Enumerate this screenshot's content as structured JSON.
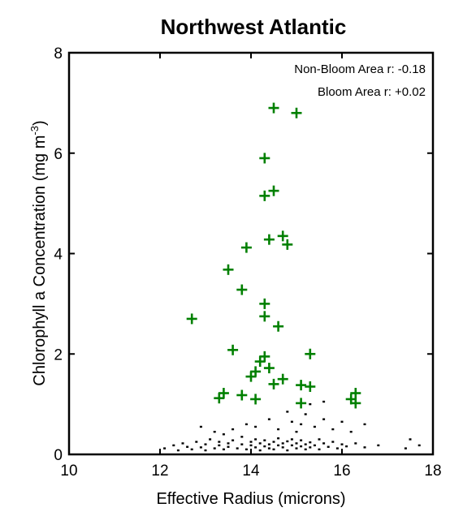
{
  "chart_data": {
    "type": "scatter",
    "title": "Northwest Atlantic",
    "xlabel": "Effective Radius (microns)",
    "ylabel": "Chlorophyll a Concentration (mg m",
    "ylabel_superscript": "-3",
    "ylabel_close": ")",
    "xlim": [
      10,
      18
    ],
    "ylim": [
      0,
      8
    ],
    "xticks": [
      10,
      12,
      14,
      16,
      18
    ],
    "yticks": [
      0,
      2,
      4,
      6,
      8
    ],
    "grid": false,
    "annotations": [
      "Non-Bloom Area r: -0.18",
      "Bloom Area r: +0.02"
    ],
    "series": [
      {
        "marker": "dot",
        "color": "#000000",
        "points": [
          [
            12.1,
            0.12
          ],
          [
            12.3,
            0.18
          ],
          [
            12.4,
            0.08
          ],
          [
            12.5,
            0.22
          ],
          [
            12.6,
            0.15
          ],
          [
            12.7,
            0.1
          ],
          [
            12.8,
            0.25
          ],
          [
            12.9,
            0.14
          ],
          [
            13.0,
            0.2
          ],
          [
            13.0,
            0.08
          ],
          [
            13.1,
            0.3
          ],
          [
            13.2,
            0.12
          ],
          [
            13.3,
            0.18
          ],
          [
            13.3,
            0.25
          ],
          [
            13.4,
            0.1
          ],
          [
            13.5,
            0.22
          ],
          [
            13.5,
            0.15
          ],
          [
            13.6,
            0.28
          ],
          [
            13.7,
            0.12
          ],
          [
            13.8,
            0.2
          ],
          [
            13.8,
            0.35
          ],
          [
            13.9,
            0.1
          ],
          [
            14.0,
            0.18
          ],
          [
            14.0,
            0.25
          ],
          [
            14.1,
            0.14
          ],
          [
            14.1,
            0.3
          ],
          [
            14.2,
            0.22
          ],
          [
            14.2,
            0.08
          ],
          [
            14.3,
            0.16
          ],
          [
            14.3,
            0.28
          ],
          [
            14.4,
            0.12
          ],
          [
            14.4,
            0.2
          ],
          [
            14.5,
            0.25
          ],
          [
            14.5,
            0.1
          ],
          [
            14.6,
            0.18
          ],
          [
            14.6,
            0.32
          ],
          [
            14.7,
            0.14
          ],
          [
            14.7,
            0.22
          ],
          [
            14.8,
            0.08
          ],
          [
            14.8,
            0.26
          ],
          [
            14.9,
            0.18
          ],
          [
            14.9,
            0.3
          ],
          [
            15.0,
            0.12
          ],
          [
            15.0,
            0.22
          ],
          [
            15.1,
            0.16
          ],
          [
            15.1,
            0.28
          ],
          [
            15.2,
            0.1
          ],
          [
            15.2,
            0.2
          ],
          [
            15.3,
            0.24
          ],
          [
            15.3,
            0.14
          ],
          [
            15.4,
            0.18
          ],
          [
            15.5,
            0.3
          ],
          [
            15.5,
            0.1
          ],
          [
            15.6,
            0.22
          ],
          [
            15.7,
            0.15
          ],
          [
            15.8,
            0.25
          ],
          [
            15.9,
            0.12
          ],
          [
            16.0,
            0.2
          ],
          [
            16.1,
            0.16
          ],
          [
            16.3,
            0.22
          ],
          [
            16.5,
            0.14
          ],
          [
            16.8,
            0.18
          ],
          [
            13.2,
            0.45
          ],
          [
            13.6,
            0.5
          ],
          [
            13.9,
            0.6
          ],
          [
            14.1,
            0.55
          ],
          [
            14.4,
            0.7
          ],
          [
            14.6,
            0.5
          ],
          [
            14.9,
            0.65
          ],
          [
            15.1,
            0.6
          ],
          [
            15.2,
            0.8
          ],
          [
            15.4,
            0.55
          ],
          [
            15.6,
            0.7
          ],
          [
            15.8,
            0.5
          ],
          [
            16.0,
            0.65
          ],
          [
            16.2,
            0.45
          ],
          [
            15.3,
            1.0
          ],
          [
            15.6,
            1.05
          ],
          [
            14.8,
            0.85
          ],
          [
            15.0,
            0.45
          ],
          [
            16.5,
            0.6
          ],
          [
            17.5,
            0.3
          ],
          [
            17.7,
            0.18
          ],
          [
            17.4,
            0.12
          ],
          [
            12.9,
            0.55
          ],
          [
            13.4,
            0.4
          ]
        ]
      },
      {
        "marker": "plus",
        "color": "#008000",
        "points": [
          [
            14.5,
            6.9
          ],
          [
            15.0,
            6.8
          ],
          [
            14.3,
            5.9
          ],
          [
            14.5,
            5.25
          ],
          [
            14.3,
            5.15
          ],
          [
            14.7,
            4.35
          ],
          [
            14.4,
            4.28
          ],
          [
            14.8,
            4.18
          ],
          [
            13.9,
            4.12
          ],
          [
            13.5,
            3.68
          ],
          [
            13.8,
            3.28
          ],
          [
            14.3,
            3.0
          ],
          [
            14.3,
            2.75
          ],
          [
            12.7,
            2.7
          ],
          [
            14.6,
            2.55
          ],
          [
            13.6,
            2.08
          ],
          [
            15.3,
            2.0
          ],
          [
            14.3,
            1.95
          ],
          [
            14.2,
            1.85
          ],
          [
            14.4,
            1.72
          ],
          [
            14.1,
            1.65
          ],
          [
            14.0,
            1.55
          ],
          [
            14.7,
            1.5
          ],
          [
            15.1,
            1.38
          ],
          [
            15.3,
            1.35
          ],
          [
            14.5,
            1.4
          ],
          [
            13.4,
            1.22
          ],
          [
            13.8,
            1.18
          ],
          [
            13.3,
            1.12
          ],
          [
            14.1,
            1.1
          ],
          [
            15.1,
            1.02
          ],
          [
            16.2,
            1.1
          ],
          [
            16.3,
            1.22
          ],
          [
            16.3,
            1.02
          ]
        ]
      }
    ]
  }
}
